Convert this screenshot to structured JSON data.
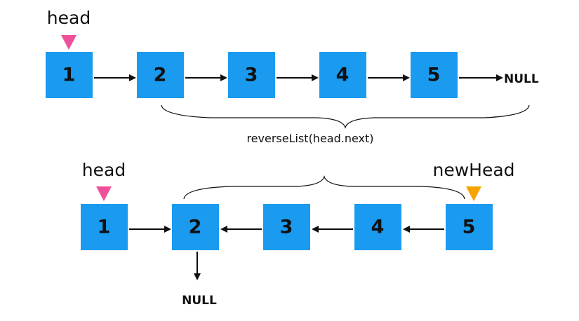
{
  "top_row": {
    "nodes": [
      "1",
      "2",
      "3",
      "4",
      "5"
    ],
    "head_label": "head",
    "null_label": "NULL"
  },
  "recursive_call": {
    "label": "reverseList(head.next)"
  },
  "bottom_row": {
    "nodes": [
      "1",
      "2",
      "3",
      "4",
      "5"
    ],
    "head_label": "head",
    "new_head_label": "newHead",
    "null_label": "NULL"
  },
  "colors": {
    "node_fill": "#1a9bf0",
    "head_marker": "#f0509a",
    "new_head_marker": "#f6a300",
    "arrow": "#111111"
  }
}
